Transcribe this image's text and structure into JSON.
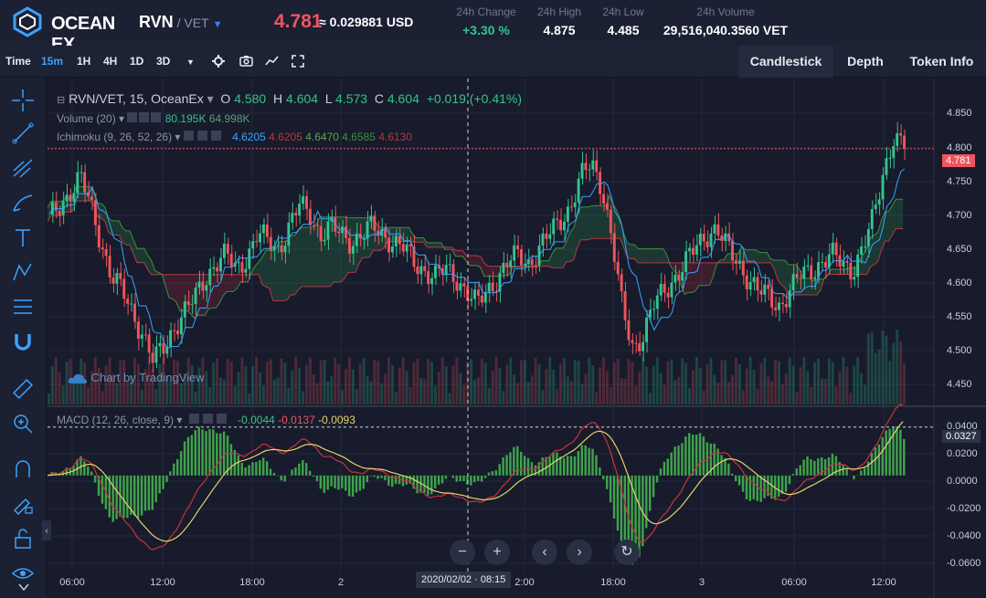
{
  "header": {
    "logo_text": "OCEAN EX",
    "pair_base": "RVN",
    "pair_quote": " / VET",
    "last_price": "4.781",
    "usd_price": "≈ 0.029881 USD",
    "stats": [
      {
        "label": "24h Change",
        "value": "+3.30 %",
        "up": true
      },
      {
        "label": "24h High",
        "value": "4.875"
      },
      {
        "label": "24h Low",
        "value": "4.485"
      },
      {
        "label": "24h Volume",
        "value": "29,516,040.3560 VET"
      }
    ]
  },
  "toolbar": {
    "time_label": "Time",
    "intervals": [
      "15m",
      "1H",
      "4H",
      "1D",
      "3D"
    ],
    "active_interval": "15m",
    "tabs": [
      "Candlestick",
      "Depth",
      "Token Info"
    ],
    "active_tab": "Candlestick"
  },
  "legend": {
    "symbol": "RVN/VET, 15, OceanEx",
    "o_label": "O",
    "o": "4.580",
    "h_label": "H",
    "h": "4.604",
    "l_label": "L",
    "l": "4.573",
    "c_label": "C",
    "c": "4.604",
    "change": "+0.019 (+0.41%)",
    "volume_label": "Volume (20)",
    "volume_1": "80.195K",
    "volume_2": "64.998K",
    "ichimoku_label": "Ichimoku (9, 26, 52, 26)",
    "ichimoku_values": [
      "4.6205",
      "4.6205",
      "4.6470",
      "4.6585",
      "4.6130"
    ],
    "macd_label": "MACD (12, 26, close, 9)",
    "macd_values": [
      "-0.0044",
      "-0.0137",
      "-0.0093"
    ],
    "watermark": "Chart by TradingView"
  },
  "price_axis": {
    "ticks": [
      "4.850",
      "4.800",
      "4.750",
      "4.700",
      "4.650",
      "4.600",
      "4.550",
      "4.500",
      "4.450"
    ],
    "current_label": "4.781"
  },
  "macd_axis": {
    "ticks": [
      "0.0400",
      "0.0200",
      "0.0000",
      "-0.0200",
      "-0.0400",
      "-0.0600"
    ],
    "current_label": "0.0327"
  },
  "time_axis": {
    "ticks": [
      "06:00",
      "12:00",
      "18:00",
      "2",
      "2:00",
      "18:00",
      "3",
      "06:00",
      "12:00"
    ],
    "crosshair_label": "2020/02/02 · 08:15"
  },
  "chart_data": {
    "type": "candlestick",
    "price_ylim": [
      4.42,
      4.88
    ],
    "current_price": 4.781,
    "closes": [
      4.68,
      4.7,
      4.72,
      4.74,
      4.7,
      4.65,
      4.6,
      4.58,
      4.55,
      4.52,
      4.48,
      4.5,
      4.53,
      4.55,
      4.57,
      4.6,
      4.62,
      4.63,
      4.61,
      4.63,
      4.66,
      4.65,
      4.64,
      4.67,
      4.7,
      4.69,
      4.66,
      4.67,
      4.66,
      4.65,
      4.66,
      4.67,
      4.66,
      4.65,
      4.64,
      4.62,
      4.61,
      4.6,
      4.61,
      4.6,
      4.58,
      4.56,
      4.58,
      4.6,
      4.62,
      4.63,
      4.62,
      4.64,
      4.66,
      4.68,
      4.7,
      4.74,
      4.76,
      4.73,
      4.65,
      4.55,
      4.5,
      4.52,
      4.56,
      4.58,
      4.6,
      4.62,
      4.64,
      4.66,
      4.67,
      4.64,
      4.62,
      4.6,
      4.58,
      4.57,
      4.56,
      4.58,
      4.6,
      4.61,
      4.62,
      4.63,
      4.62,
      4.61,
      4.64,
      4.68,
      4.75,
      4.8,
      4.78
    ],
    "macd_ylim": [
      -0.065,
      0.045
    ],
    "macd_current": 0.0327
  },
  "colors": {
    "up": "#34c38f",
    "down": "#f0545c",
    "accent": "#3aa3ff",
    "bg": "#171b2b"
  }
}
